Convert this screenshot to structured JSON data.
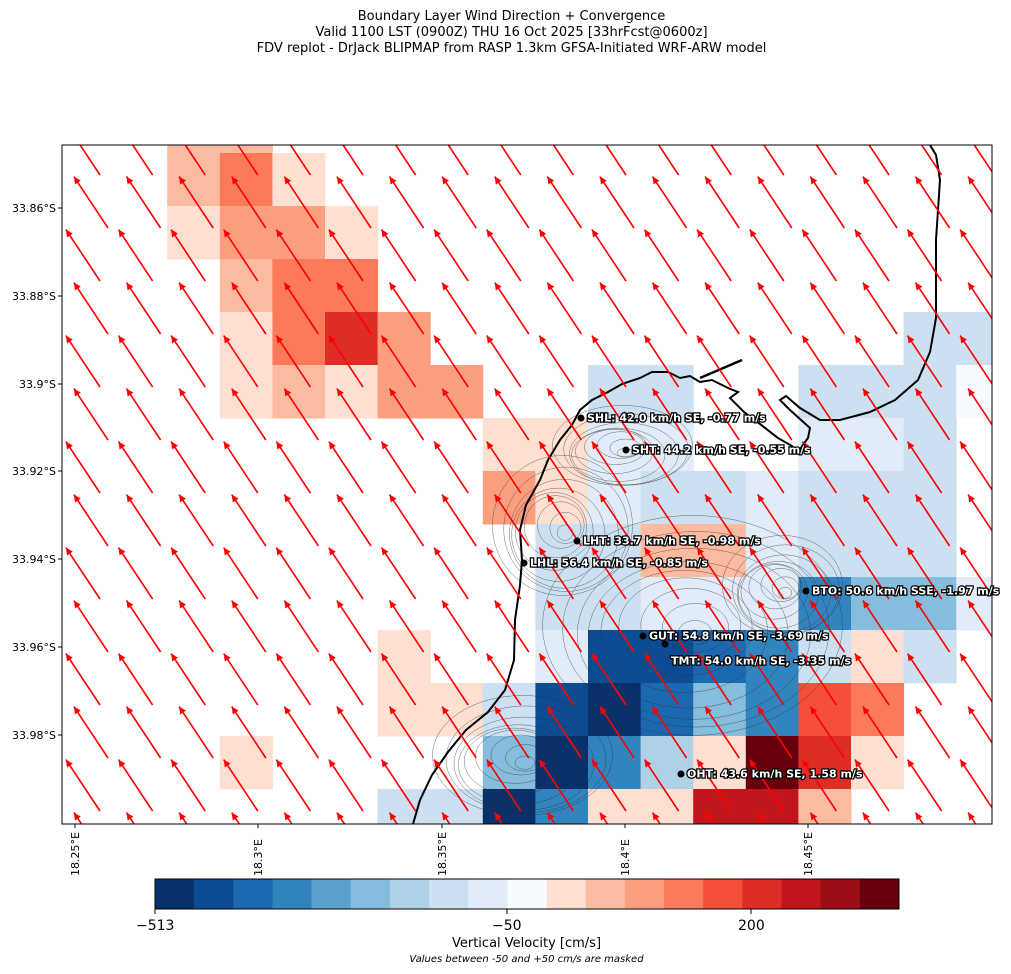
{
  "header": {
    "line1": "Boundary Layer Wind Direction + Convergence",
    "line2": "Valid 1100 LST (0900Z) THU 16 Oct 2025 [33hrFcst@0600z]",
    "line3": "FDV replot - DrJack BLIPMAP from RASP 1.3km GFSA-Initiated WRF-ARW model"
  },
  "axes": {
    "lat_ticks": [
      "33.86°S",
      "33.88°S",
      "33.9°S",
      "33.92°S",
      "33.94°S",
      "33.96°S",
      "33.98°S"
    ],
    "lon_ticks": [
      "18.25°E",
      "18.3°E",
      "18.35°E",
      "18.4°E",
      "18.45°E"
    ]
  },
  "stations": [
    {
      "code": "SHL",
      "label": "SHL: 42.0 km/h SE, -0.77 m/s"
    },
    {
      "code": "SHT",
      "label": "SHT: 44.2 km/h SE, -0.55 m/s"
    },
    {
      "code": "LHT",
      "label": "LHT: 33.7 km/h SE, -0.98 m/s"
    },
    {
      "code": "LHL",
      "label": "LHL: 56.4 km/h SE, -0.85 m/s"
    },
    {
      "code": "BTO",
      "label": "BTO: 50.6 km/h SSE, -1.97 m/s"
    },
    {
      "code": "GUT",
      "label": "GUT: 54.8 km/h SE, -3.69 m/s"
    },
    {
      "code": "TMT",
      "label": "TMT: 54.0 km/h SE, -3.35 m/s"
    },
    {
      "code": "OHT",
      "label": "OHT: 43.6 km/h SE, 1.58 m/s"
    }
  ],
  "colorbar": {
    "title": "Vertical Velocity [cm/s]",
    "note": "Values between -50 and +50 cm/s are masked",
    "labels": [
      "−513",
      "−50",
      "200"
    ],
    "colors": [
      "#08306b",
      "#0b4c93",
      "#1c69b1",
      "#3284bf",
      "#5aa1cf",
      "#86bcdc",
      "#aed1e7",
      "#cde0f1",
      "#e1ecf8",
      "#f7fbff",
      "#fee0d2",
      "#fcbba1",
      "#fc9f80",
      "#fb7a59",
      "#f44f39",
      "#de2c26",
      "#c0151b",
      "#9d0d15",
      "#67000d"
    ]
  },
  "wind_arrow_color": "#ff0000"
}
